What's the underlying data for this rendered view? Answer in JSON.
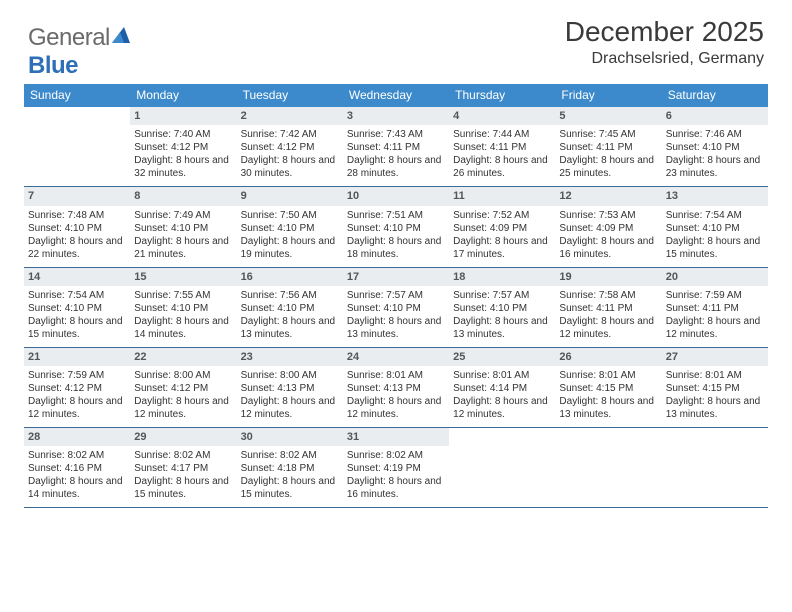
{
  "logo": {
    "part1": "General",
    "part2": "Blue"
  },
  "header": {
    "month": "December 2025",
    "location": "Drachselsried, Germany"
  },
  "colors": {
    "header_bg": "#3c8acb",
    "rule": "#3c6a99",
    "daynum_bg": "#e9edf0",
    "text": "#333333",
    "logo_gray": "#6a6a6a",
    "logo_blue": "#2e6fb7"
  },
  "typography": {
    "month_fontsize": 28,
    "location_fontsize": 16,
    "dayhdr_fontsize": 12,
    "cell_fontsize": 10
  },
  "day_names": [
    "Sunday",
    "Monday",
    "Tuesday",
    "Wednesday",
    "Thursday",
    "Friday",
    "Saturday"
  ],
  "weeks": [
    [
      {
        "empty": true
      },
      {
        "n": "1",
        "sr": "7:40 AM",
        "ss": "4:12 PM",
        "dl": "8 hours and 32 minutes."
      },
      {
        "n": "2",
        "sr": "7:42 AM",
        "ss": "4:12 PM",
        "dl": "8 hours and 30 minutes."
      },
      {
        "n": "3",
        "sr": "7:43 AM",
        "ss": "4:11 PM",
        "dl": "8 hours and 28 minutes."
      },
      {
        "n": "4",
        "sr": "7:44 AM",
        "ss": "4:11 PM",
        "dl": "8 hours and 26 minutes."
      },
      {
        "n": "5",
        "sr": "7:45 AM",
        "ss": "4:11 PM",
        "dl": "8 hours and 25 minutes."
      },
      {
        "n": "6",
        "sr": "7:46 AM",
        "ss": "4:10 PM",
        "dl": "8 hours and 23 minutes."
      }
    ],
    [
      {
        "n": "7",
        "sr": "7:48 AM",
        "ss": "4:10 PM",
        "dl": "8 hours and 22 minutes."
      },
      {
        "n": "8",
        "sr": "7:49 AM",
        "ss": "4:10 PM",
        "dl": "8 hours and 21 minutes."
      },
      {
        "n": "9",
        "sr": "7:50 AM",
        "ss": "4:10 PM",
        "dl": "8 hours and 19 minutes."
      },
      {
        "n": "10",
        "sr": "7:51 AM",
        "ss": "4:10 PM",
        "dl": "8 hours and 18 minutes."
      },
      {
        "n": "11",
        "sr": "7:52 AM",
        "ss": "4:09 PM",
        "dl": "8 hours and 17 minutes."
      },
      {
        "n": "12",
        "sr": "7:53 AM",
        "ss": "4:09 PM",
        "dl": "8 hours and 16 minutes."
      },
      {
        "n": "13",
        "sr": "7:54 AM",
        "ss": "4:10 PM",
        "dl": "8 hours and 15 minutes."
      }
    ],
    [
      {
        "n": "14",
        "sr": "7:54 AM",
        "ss": "4:10 PM",
        "dl": "8 hours and 15 minutes."
      },
      {
        "n": "15",
        "sr": "7:55 AM",
        "ss": "4:10 PM",
        "dl": "8 hours and 14 minutes."
      },
      {
        "n": "16",
        "sr": "7:56 AM",
        "ss": "4:10 PM",
        "dl": "8 hours and 13 minutes."
      },
      {
        "n": "17",
        "sr": "7:57 AM",
        "ss": "4:10 PM",
        "dl": "8 hours and 13 minutes."
      },
      {
        "n": "18",
        "sr": "7:57 AM",
        "ss": "4:10 PM",
        "dl": "8 hours and 13 minutes."
      },
      {
        "n": "19",
        "sr": "7:58 AM",
        "ss": "4:11 PM",
        "dl": "8 hours and 12 minutes."
      },
      {
        "n": "20",
        "sr": "7:59 AM",
        "ss": "4:11 PM",
        "dl": "8 hours and 12 minutes."
      }
    ],
    [
      {
        "n": "21",
        "sr": "7:59 AM",
        "ss": "4:12 PM",
        "dl": "8 hours and 12 minutes."
      },
      {
        "n": "22",
        "sr": "8:00 AM",
        "ss": "4:12 PM",
        "dl": "8 hours and 12 minutes."
      },
      {
        "n": "23",
        "sr": "8:00 AM",
        "ss": "4:13 PM",
        "dl": "8 hours and 12 minutes."
      },
      {
        "n": "24",
        "sr": "8:01 AM",
        "ss": "4:13 PM",
        "dl": "8 hours and 12 minutes."
      },
      {
        "n": "25",
        "sr": "8:01 AM",
        "ss": "4:14 PM",
        "dl": "8 hours and 12 minutes."
      },
      {
        "n": "26",
        "sr": "8:01 AM",
        "ss": "4:15 PM",
        "dl": "8 hours and 13 minutes."
      },
      {
        "n": "27",
        "sr": "8:01 AM",
        "ss": "4:15 PM",
        "dl": "8 hours and 13 minutes."
      }
    ],
    [
      {
        "n": "28",
        "sr": "8:02 AM",
        "ss": "4:16 PM",
        "dl": "8 hours and 14 minutes."
      },
      {
        "n": "29",
        "sr": "8:02 AM",
        "ss": "4:17 PM",
        "dl": "8 hours and 15 minutes."
      },
      {
        "n": "30",
        "sr": "8:02 AM",
        "ss": "4:18 PM",
        "dl": "8 hours and 15 minutes."
      },
      {
        "n": "31",
        "sr": "8:02 AM",
        "ss": "4:19 PM",
        "dl": "8 hours and 16 minutes."
      },
      {
        "empty": true
      },
      {
        "empty": true
      },
      {
        "empty": true
      }
    ]
  ],
  "labels": {
    "sunrise": "Sunrise:",
    "sunset": "Sunset:",
    "daylight": "Daylight:"
  }
}
